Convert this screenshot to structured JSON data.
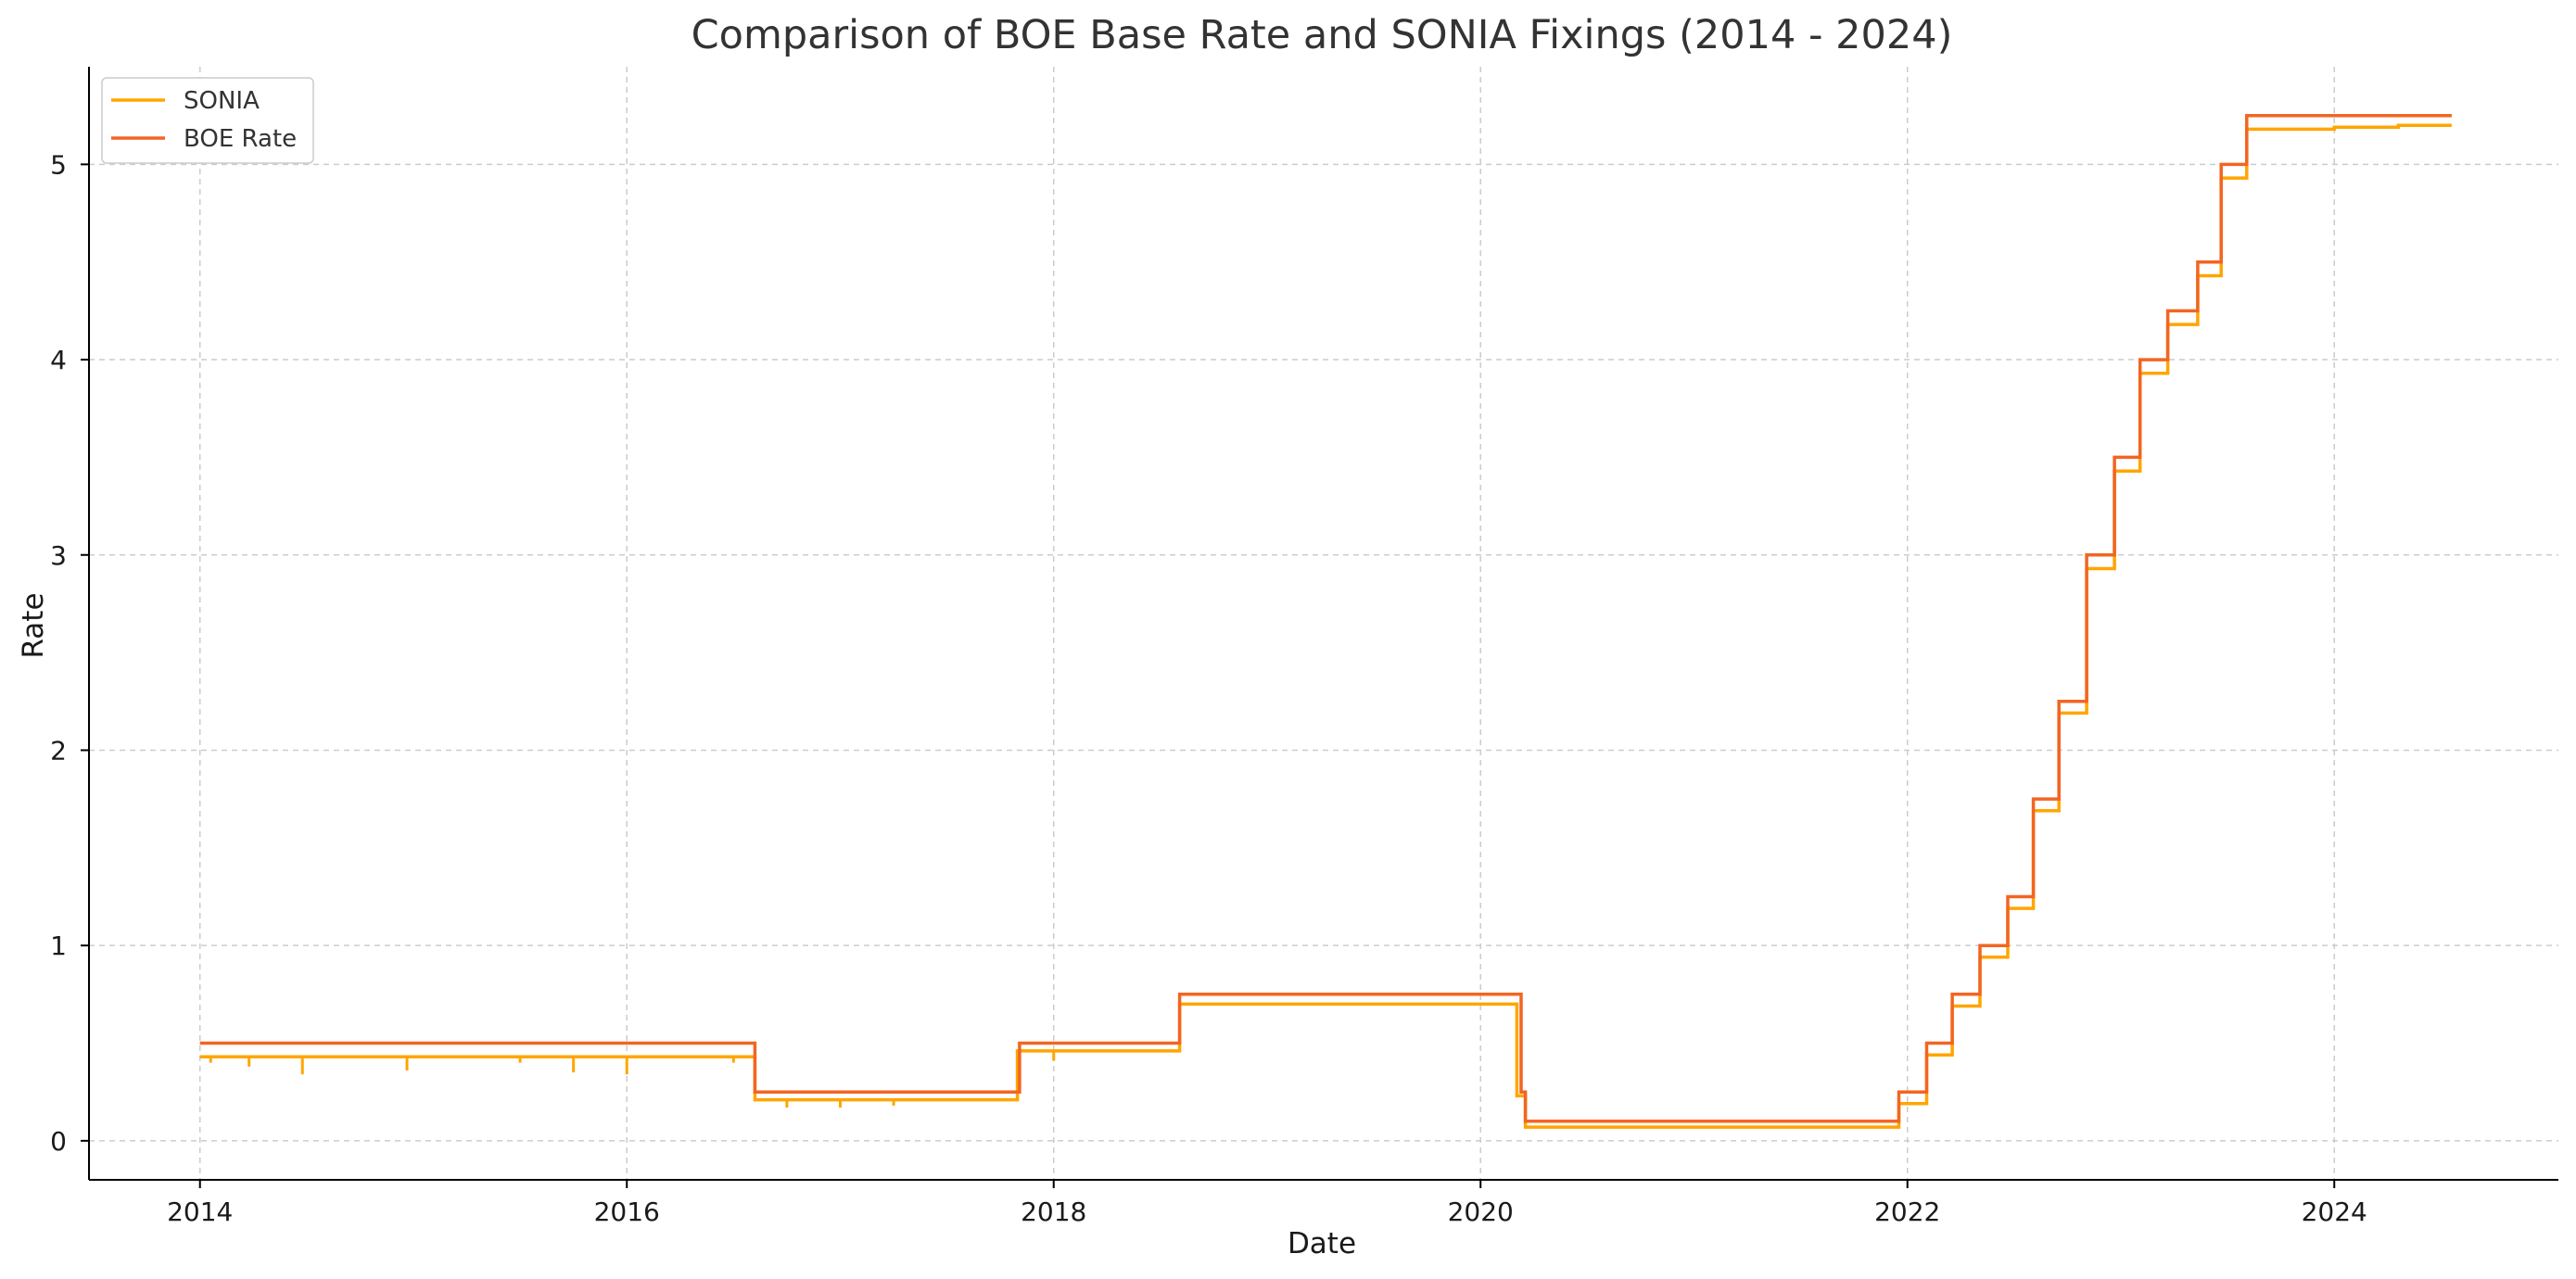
{
  "chart_data": {
    "type": "line",
    "title": "Comparison of BOE Base Rate and SONIA Fixings (2014 - 2024)",
    "xlabel": "Date",
    "ylabel": "Rate",
    "xlim": [
      2013.48,
      2025.05
    ],
    "ylim": [
      -0.2,
      5.5
    ],
    "x_ticks": [
      2014,
      2016,
      2018,
      2020,
      2022,
      2024
    ],
    "x_tick_labels": [
      "2014",
      "2016",
      "2018",
      "2020",
      "2022",
      "2024"
    ],
    "y_ticks": [
      0,
      1,
      2,
      3,
      4,
      5
    ],
    "y_tick_labels": [
      "0",
      "1",
      "2",
      "3",
      "4",
      "5"
    ],
    "grid": true,
    "legend_position": "top-left",
    "series": [
      {
        "name": "SONIA",
        "color": "#FFA500",
        "step": true,
        "x": [
          2014.0,
          2016.6,
          2017.83,
          2018.59,
          2020.17,
          2020.21,
          2021.96,
          2022.09,
          2022.21,
          2022.34,
          2022.47,
          2022.59,
          2022.71,
          2022.84,
          2022.97,
          2023.09,
          2023.22,
          2023.36,
          2023.47,
          2023.59,
          2024.0,
          2024.3,
          2024.55
        ],
        "values": [
          0.43,
          0.21,
          0.46,
          0.7,
          0.23,
          0.07,
          0.19,
          0.44,
          0.69,
          0.94,
          1.19,
          1.69,
          2.19,
          2.93,
          3.43,
          3.93,
          4.18,
          4.43,
          4.93,
          5.18,
          5.19,
          5.2,
          5.2
        ]
      },
      {
        "name": "BOE Rate",
        "color": "#F26522",
        "step": true,
        "x": [
          2014.0,
          2016.6,
          2017.84,
          2018.59,
          2020.19,
          2020.21,
          2021.96,
          2022.09,
          2022.21,
          2022.34,
          2022.47,
          2022.59,
          2022.71,
          2022.84,
          2022.97,
          2023.09,
          2023.22,
          2023.36,
          2023.47,
          2023.59,
          2024.55
        ],
        "values": [
          0.5,
          0.25,
          0.5,
          0.75,
          0.25,
          0.1,
          0.25,
          0.5,
          0.75,
          1.0,
          1.25,
          1.75,
          2.25,
          3.0,
          3.5,
          4.0,
          4.25,
          4.5,
          5.0,
          5.25,
          5.25
        ]
      }
    ],
    "sonia_spikes": [
      {
        "x": 2014.05,
        "value": 0.4
      },
      {
        "x": 2014.23,
        "value": 0.38
      },
      {
        "x": 2014.48,
        "value": 0.34
      },
      {
        "x": 2014.97,
        "value": 0.36
      },
      {
        "x": 2015.5,
        "value": 0.4
      },
      {
        "x": 2015.75,
        "value": 0.35
      },
      {
        "x": 2016.0,
        "value": 0.34
      },
      {
        "x": 2016.5,
        "value": 0.4
      },
      {
        "x": 2016.75,
        "value": 0.17
      },
      {
        "x": 2017.0,
        "value": 0.17
      },
      {
        "x": 2017.25,
        "value": 0.18
      },
      {
        "x": 2018.0,
        "value": 0.41
      }
    ]
  }
}
